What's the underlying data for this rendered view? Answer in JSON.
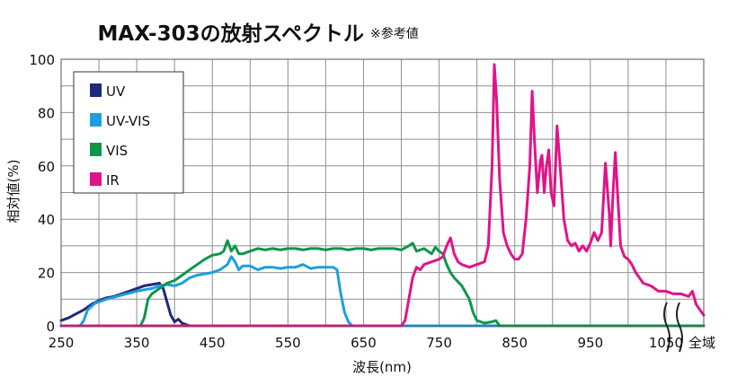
{
  "chart_data": {
    "type": "line",
    "title": "MAX-303の放射スペクトル",
    "title_note": "※参考値",
    "xlabel": "波長(nm)",
    "ylabel": "相対値(%)",
    "xlim": [
      250,
      1100
    ],
    "ylim": [
      0,
      100
    ],
    "x_ticks": [
      250,
      350,
      450,
      550,
      650,
      750,
      850,
      950,
      1050
    ],
    "y_ticks": [
      0,
      20,
      40,
      60,
      80,
      100
    ],
    "x_extra_label": "全域",
    "grid": true,
    "legend_position": "top-left",
    "series": [
      {
        "name": "UV",
        "color": "#1f2a7a",
        "points": [
          [
            250,
            2
          ],
          [
            260,
            3
          ],
          [
            270,
            4.5
          ],
          [
            280,
            6
          ],
          [
            290,
            8
          ],
          [
            300,
            9.5
          ],
          [
            310,
            10.5
          ],
          [
            320,
            11
          ],
          [
            330,
            12
          ],
          [
            340,
            13
          ],
          [
            350,
            14
          ],
          [
            360,
            15
          ],
          [
            370,
            15.5
          ],
          [
            380,
            16
          ],
          [
            385,
            14
          ],
          [
            390,
            9
          ],
          [
            395,
            4
          ],
          [
            400,
            1.5
          ],
          [
            405,
            2.5
          ],
          [
            410,
            1
          ],
          [
            420,
            0
          ],
          [
            1100,
            0
          ]
        ]
      },
      {
        "name": "UV-VIS",
        "color": "#1e9fdd",
        "points": [
          [
            250,
            0
          ],
          [
            275,
            0
          ],
          [
            280,
            2
          ],
          [
            285,
            6
          ],
          [
            295,
            8.5
          ],
          [
            310,
            10
          ],
          [
            330,
            11.5
          ],
          [
            350,
            13
          ],
          [
            360,
            13.5
          ],
          [
            370,
            14
          ],
          [
            380,
            15
          ],
          [
            390,
            15.5
          ],
          [
            400,
            15
          ],
          [
            410,
            16
          ],
          [
            420,
            18
          ],
          [
            430,
            19
          ],
          [
            440,
            19.5
          ],
          [
            450,
            20
          ],
          [
            460,
            21
          ],
          [
            470,
            23
          ],
          [
            475,
            26
          ],
          [
            480,
            24
          ],
          [
            485,
            21
          ],
          [
            490,
            22.5
          ],
          [
            500,
            22.5
          ],
          [
            510,
            21
          ],
          [
            520,
            22
          ],
          [
            530,
            22
          ],
          [
            540,
            21.5
          ],
          [
            550,
            22
          ],
          [
            560,
            22
          ],
          [
            570,
            23
          ],
          [
            580,
            21.5
          ],
          [
            590,
            22
          ],
          [
            600,
            22
          ],
          [
            610,
            22
          ],
          [
            615,
            21
          ],
          [
            620,
            12
          ],
          [
            625,
            5
          ],
          [
            630,
            1.5
          ],
          [
            635,
            0
          ],
          [
            1100,
            0
          ]
        ]
      },
      {
        "name": "VIS",
        "color": "#10964a",
        "points": [
          [
            250,
            0
          ],
          [
            355,
            0
          ],
          [
            360,
            3
          ],
          [
            365,
            10
          ],
          [
            370,
            12
          ],
          [
            380,
            14
          ],
          [
            390,
            16
          ],
          [
            400,
            17
          ],
          [
            410,
            19
          ],
          [
            420,
            21
          ],
          [
            430,
            23
          ],
          [
            440,
            25
          ],
          [
            450,
            26.5
          ],
          [
            460,
            27
          ],
          [
            465,
            28
          ],
          [
            470,
            32
          ],
          [
            475,
            28
          ],
          [
            480,
            30
          ],
          [
            485,
            27
          ],
          [
            490,
            27
          ],
          [
            500,
            28
          ],
          [
            510,
            29
          ],
          [
            520,
            28.5
          ],
          [
            530,
            29
          ],
          [
            540,
            28.5
          ],
          [
            550,
            29
          ],
          [
            560,
            29
          ],
          [
            570,
            28.5
          ],
          [
            580,
            29
          ],
          [
            590,
            29
          ],
          [
            600,
            28.5
          ],
          [
            610,
            29
          ],
          [
            620,
            29
          ],
          [
            630,
            28.5
          ],
          [
            640,
            29
          ],
          [
            650,
            29
          ],
          [
            660,
            28.5
          ],
          [
            670,
            29
          ],
          [
            680,
            29
          ],
          [
            690,
            29
          ],
          [
            700,
            28.5
          ],
          [
            710,
            30
          ],
          [
            715,
            31
          ],
          [
            720,
            28
          ],
          [
            730,
            29
          ],
          [
            740,
            27
          ],
          [
            745,
            29.5
          ],
          [
            750,
            28
          ],
          [
            755,
            27
          ],
          [
            760,
            23
          ],
          [
            765,
            20
          ],
          [
            770,
            18
          ],
          [
            780,
            15
          ],
          [
            790,
            10
          ],
          [
            795,
            5
          ],
          [
            800,
            2
          ],
          [
            810,
            1
          ],
          [
            820,
            1.5
          ],
          [
            825,
            2
          ],
          [
            830,
            0
          ],
          [
            1100,
            0
          ]
        ]
      },
      {
        "name": "IR",
        "color": "#e0148a",
        "points": [
          [
            250,
            0
          ],
          [
            700,
            0
          ],
          [
            705,
            2
          ],
          [
            710,
            10
          ],
          [
            715,
            18
          ],
          [
            720,
            22
          ],
          [
            725,
            21
          ],
          [
            730,
            23
          ],
          [
            740,
            24
          ],
          [
            750,
            25
          ],
          [
            755,
            26
          ],
          [
            760,
            30
          ],
          [
            765,
            33
          ],
          [
            770,
            27
          ],
          [
            775,
            24
          ],
          [
            780,
            23
          ],
          [
            790,
            22
          ],
          [
            800,
            23
          ],
          [
            810,
            24
          ],
          [
            815,
            30
          ],
          [
            820,
            60
          ],
          [
            823,
            98
          ],
          [
            826,
            85
          ],
          [
            830,
            55
          ],
          [
            835,
            35
          ],
          [
            840,
            30
          ],
          [
            845,
            27
          ],
          [
            850,
            25
          ],
          [
            855,
            25
          ],
          [
            860,
            27
          ],
          [
            865,
            40
          ],
          [
            870,
            60
          ],
          [
            873,
            88
          ],
          [
            876,
            70
          ],
          [
            880,
            50
          ],
          [
            884,
            62
          ],
          [
            886,
            64
          ],
          [
            889,
            50
          ],
          [
            892,
            60
          ],
          [
            895,
            66
          ],
          [
            898,
            50
          ],
          [
            902,
            45
          ],
          [
            906,
            75
          ],
          [
            910,
            60
          ],
          [
            915,
            40
          ],
          [
            920,
            32
          ],
          [
            925,
            30
          ],
          [
            930,
            31
          ],
          [
            935,
            28
          ],
          [
            940,
            30
          ],
          [
            945,
            28
          ],
          [
            950,
            31
          ],
          [
            955,
            35
          ],
          [
            960,
            32
          ],
          [
            965,
            35
          ],
          [
            970,
            61
          ],
          [
            975,
            42
          ],
          [
            977,
            30
          ],
          [
            980,
            50
          ],
          [
            983,
            65
          ],
          [
            986,
            50
          ],
          [
            990,
            30
          ],
          [
            995,
            26
          ],
          [
            1000,
            25
          ],
          [
            1005,
            23
          ],
          [
            1010,
            20
          ],
          [
            1015,
            18
          ],
          [
            1020,
            16
          ],
          [
            1030,
            15
          ],
          [
            1040,
            13
          ],
          [
            1050,
            13
          ],
          [
            1060,
            12
          ],
          [
            1070,
            12
          ],
          [
            1080,
            11
          ],
          [
            1085,
            13
          ],
          [
            1090,
            8
          ],
          [
            1095,
            6
          ],
          [
            1100,
            4
          ]
        ]
      }
    ]
  }
}
